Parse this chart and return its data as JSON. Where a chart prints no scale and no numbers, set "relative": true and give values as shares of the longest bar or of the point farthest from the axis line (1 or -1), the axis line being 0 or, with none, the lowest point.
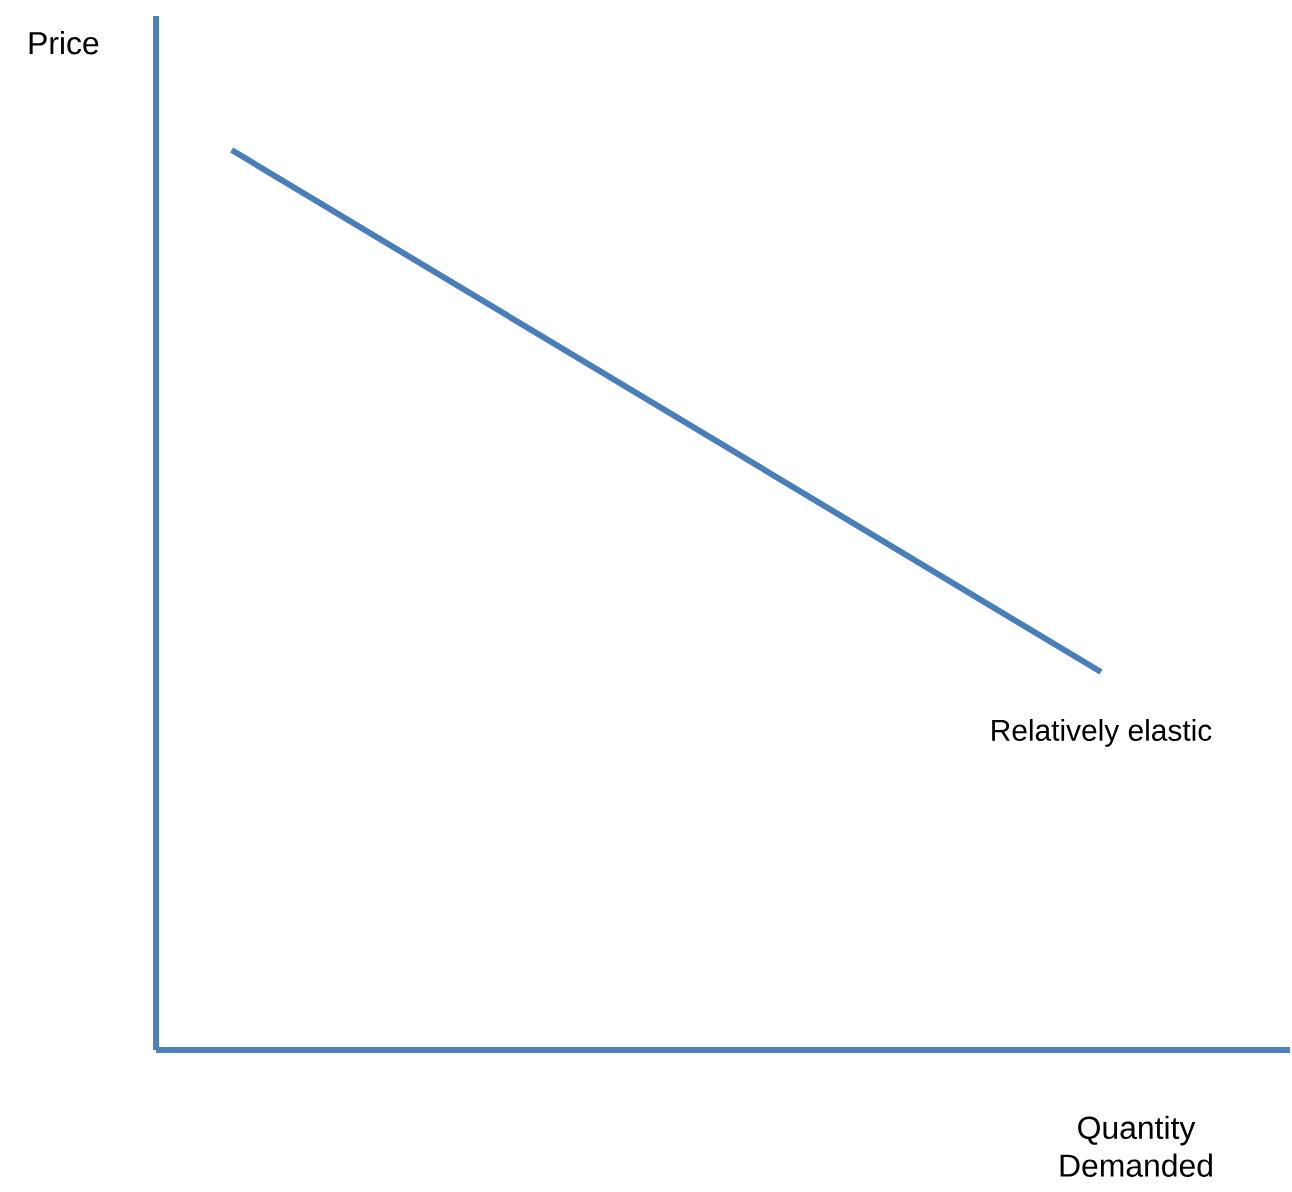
{
  "chart_data": {
    "type": "line",
    "relative": true,
    "xlabel": "Quantity Demanded",
    "ylabel": "Price",
    "categories": [
      null,
      null,
      null,
      null,
      null,
      null,
      null,
      null,
      null,
      null,
      null,
      null,
      null,
      null,
      null,
      null,
      null,
      null,
      null,
      null,
      null,
      null,
      null,
      null,
      null,
      null,
      null,
      null,
      null,
      null,
      null
    ],
    "series": [
      {
        "color": "#4a7ebb",
        "values": [
          null,
          null,
          1,
          null,
          null,
          null,
          null,
          null,
          null,
          null,
          null,
          null,
          null,
          null,
          null,
          null,
          null,
          null,
          null,
          null,
          null,
          null,
          null,
          null,
          null,
          0.42,
          null,
          null,
          null,
          null,
          null
        ]
      }
    ],
    "marker": "none",
    "line_style": "solid",
    "annotations": [
      "Relatively elastic"
    ]
  }
}
